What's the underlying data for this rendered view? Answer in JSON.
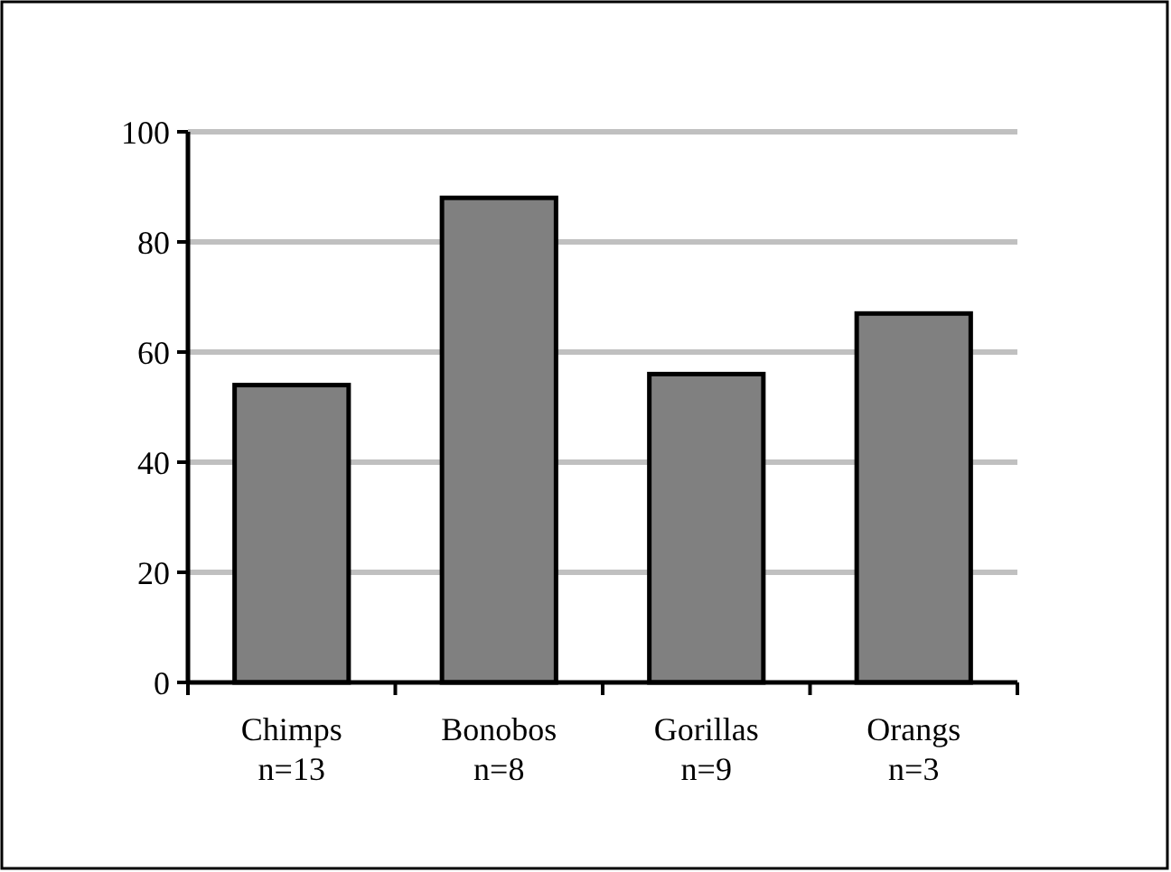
{
  "chart_data": {
    "type": "bar",
    "categories": [
      "Chimps\nn=13",
      "Bonobos\nn=8",
      "Gorillas\nn=9",
      "Orangs\nn=3"
    ],
    "values": [
      54,
      88,
      56,
      67
    ],
    "color": "#808080",
    "ylim": [
      0,
      100
    ],
    "yticks": [
      0,
      20,
      40,
      60,
      80,
      100
    ],
    "grid": "y"
  }
}
